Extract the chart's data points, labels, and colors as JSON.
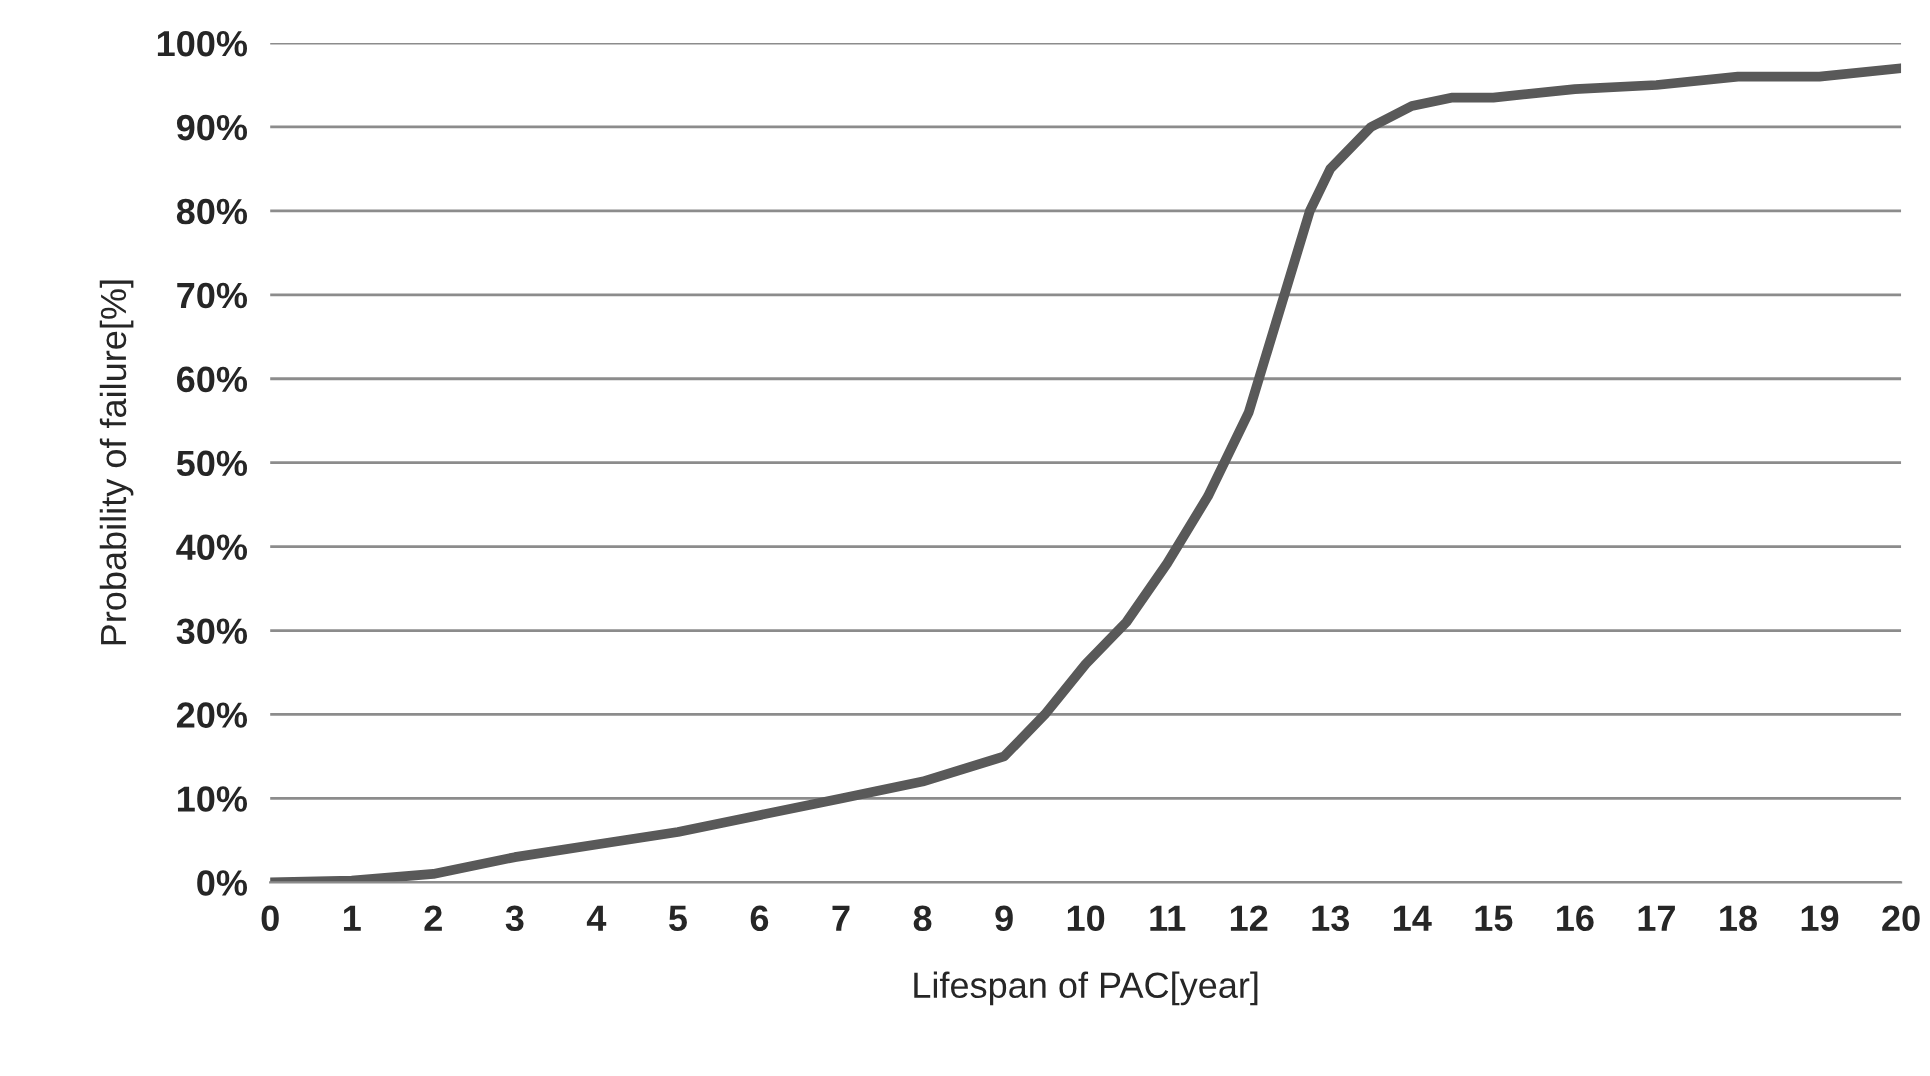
{
  "chart_data": {
    "type": "line",
    "xlabel": "Lifespan of PAC[year]",
    "ylabel": "Probability of failure[%]",
    "x": [
      0,
      1,
      2,
      3,
      4,
      5,
      6,
      7,
      8,
      9,
      9.5,
      10,
      10.5,
      11,
      11.5,
      12,
      12.5,
      12.75,
      13,
      13.5,
      14,
      14.5,
      15,
      16,
      17,
      18,
      19,
      20
    ],
    "series": [
      {
        "color": "#595959",
        "values": [
          0,
          0.2,
          1,
          3,
          4.5,
          6,
          8,
          10,
          12,
          15,
          20,
          26,
          31,
          38,
          46,
          56,
          72,
          80,
          85,
          90,
          92.5,
          93.5,
          93.5,
          94.5,
          95,
          96,
          96,
          97
        ]
      }
    ],
    "xlim": [
      0,
      20
    ],
    "ylim": [
      0,
      100
    ],
    "xticks": [
      0,
      1,
      2,
      3,
      4,
      5,
      6,
      7,
      8,
      9,
      10,
      11,
      12,
      13,
      14,
      15,
      16,
      17,
      18,
      19,
      20
    ],
    "yticks": [
      {
        "value": 0,
        "label": "0%"
      },
      {
        "value": 10,
        "label": "10%"
      },
      {
        "value": 20,
        "label": "20%"
      },
      {
        "value": 30,
        "label": "30%"
      },
      {
        "value": 40,
        "label": "40%"
      },
      {
        "value": 50,
        "label": "50%"
      },
      {
        "value": 60,
        "label": "60%"
      },
      {
        "value": 70,
        "label": "70%"
      },
      {
        "value": 80,
        "label": "80%"
      },
      {
        "value": 90,
        "label": "90%"
      },
      {
        "value": 100,
        "label": "100%"
      }
    ],
    "grid": "y",
    "line_style": "solid"
  }
}
